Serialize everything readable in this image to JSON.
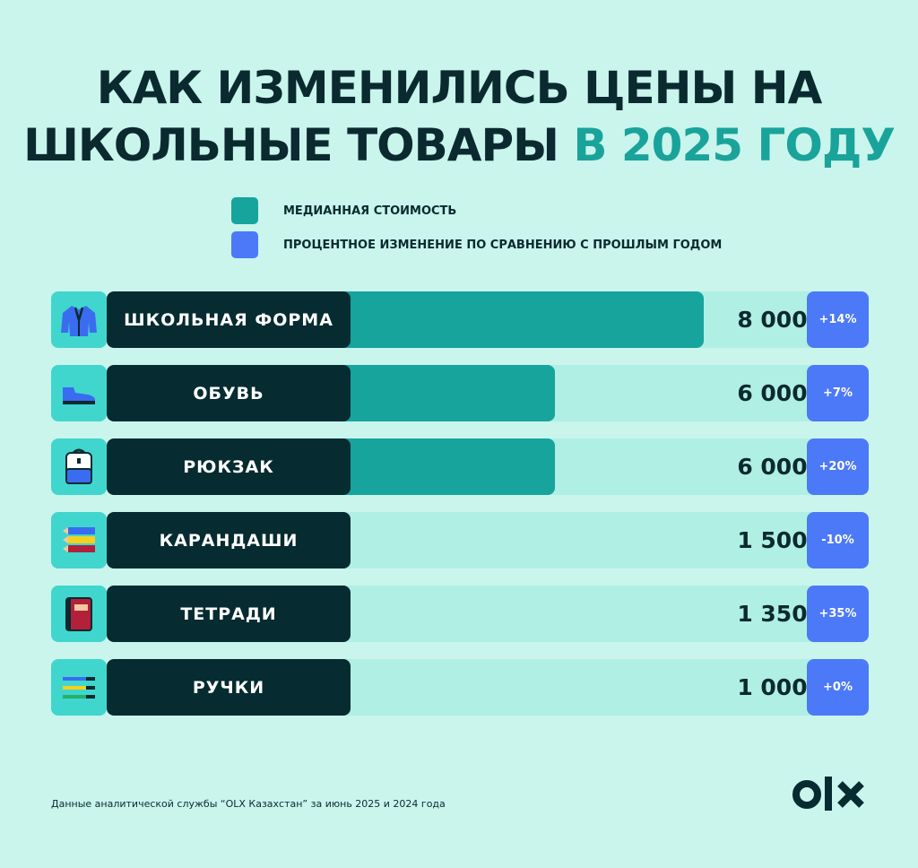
{
  "title": {
    "line1": "КАК ИЗМЕНИЛИСЬ ЦЕНЫ НА",
    "line2_prefix": "ШКОЛЬНЫЕ ТОВАРЫ",
    "line2_highlight": "В 2025 ГОДУ"
  },
  "colors": {
    "background": "#c9f5ec",
    "median_fill": "#16a49c",
    "track": "#b0efe3",
    "label_bg": "#062b30",
    "percent_bg": "#4c79f7",
    "icon_bg": "#40d6ce",
    "highlight_text": "#1aa39a"
  },
  "chart_data": {
    "type": "bar",
    "title": "КАК ИЗМЕНИЛИСЬ ЦЕНЫ НА ШКОЛЬНЫЕ ТОВАРЫ В 2025 ГОДУ",
    "orientation": "horizontal",
    "legend": [
      {
        "label": "МЕДИАННАЯ СТОИМОСТЬ",
        "color": "#16a49c"
      },
      {
        "label": "ПРОЦЕНТНОЕ ИЗМЕНЕНИЕ ПО СРАВНЕНИЮ С ПРОШЛЫМ ГОДОМ",
        "color": "#4c79f7"
      }
    ],
    "categories": [
      "ШКОЛЬНАЯ ФОРМА",
      "ОБУВЬ",
      "РЮКЗАК",
      "КАРАНДАШИ",
      "ТЕТРАДИ",
      "РУЧКИ"
    ],
    "icons": [
      "jacket-icon",
      "shoe-icon",
      "backpack-icon",
      "pencils-icon",
      "notebook-icon",
      "pens-icon"
    ],
    "series": [
      {
        "name": "МЕДИАННАЯ СТОИМОСТЬ",
        "values": [
          8000,
          6000,
          6000,
          1500,
          1350,
          1000
        ]
      },
      {
        "name": "ПРОЦЕНТНОЕ ИЗМЕНЕНИЕ ПО СРАВНЕНИЮ С ПРОШЛЫМ ГОДОМ",
        "values": [
          14,
          7,
          20,
          -10,
          35,
          0
        ]
      }
    ],
    "value_labels": [
      "8 000₸",
      "6 000₸",
      "6 000₸",
      "1 500₸",
      "1 350₸",
      "1 000₸"
    ],
    "percent_labels": [
      "+14%",
      "+7%",
      "+20%",
      "-10%",
      "+35%",
      "+0%"
    ],
    "xlim": [
      0,
      10000
    ]
  },
  "footnote": "Данные аналитической службы “OLX Казахстан” за июнь 2025 и 2024 года",
  "logo_text": "OLX"
}
